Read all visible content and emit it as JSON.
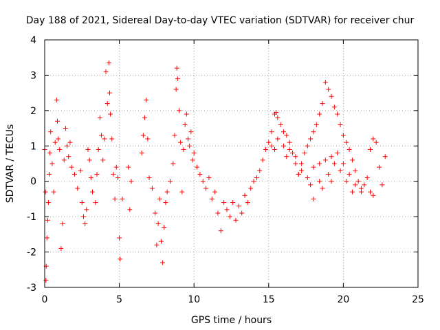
{
  "chart_data": {
    "type": "scatter",
    "title": "Day 188 of 2021, Sidereal Day-to-day VTEC variation (SDTVAR) for receiver chur",
    "xlabel": "GPS time / hours",
    "ylabel": "SDTVAR / TECUs",
    "xlim": [
      0,
      25
    ],
    "ylim": [
      -3,
      4
    ],
    "xticks": [
      0,
      5,
      10,
      15,
      20,
      25
    ],
    "yticks": [
      -3,
      -2,
      -1,
      0,
      1,
      2,
      3,
      4
    ],
    "grid": true,
    "marker": "plus",
    "color": "#ff0000",
    "series": [
      {
        "name": "SDTVAR",
        "points": [
          [
            0.0,
            0.9
          ],
          [
            0.05,
            -0.3
          ],
          [
            0.08,
            -2.8
          ],
          [
            0.1,
            -2.4
          ],
          [
            0.15,
            -1.6
          ],
          [
            0.2,
            -1.1
          ],
          [
            0.25,
            -0.6
          ],
          [
            0.3,
            0.2
          ],
          [
            0.35,
            0.8
          ],
          [
            0.4,
            1.4
          ],
          [
            0.5,
            0.5
          ],
          [
            0.6,
            -0.3
          ],
          [
            0.7,
            1.1
          ],
          [
            0.8,
            2.3
          ],
          [
            0.85,
            1.7
          ],
          [
            0.9,
            1.2
          ],
          [
            1.0,
            0.9
          ],
          [
            1.1,
            -1.9
          ],
          [
            1.2,
            -1.2
          ],
          [
            1.3,
            0.6
          ],
          [
            1.4,
            1.5
          ],
          [
            1.5,
            1.0
          ],
          [
            1.6,
            0.7
          ],
          [
            1.7,
            1.1
          ],
          [
            1.8,
            0.4
          ],
          [
            2.0,
            0.2
          ],
          [
            2.2,
            -0.2
          ],
          [
            2.4,
            0.3
          ],
          [
            2.5,
            -0.6
          ],
          [
            2.6,
            -1.0
          ],
          [
            2.7,
            -1.2
          ],
          [
            2.8,
            -0.8
          ],
          [
            2.9,
            0.9
          ],
          [
            3.0,
            0.6
          ],
          [
            3.1,
            0.1
          ],
          [
            3.2,
            -0.3
          ],
          [
            3.4,
            -0.6
          ],
          [
            3.5,
            0.2
          ],
          [
            3.6,
            0.9
          ],
          [
            3.7,
            1.8
          ],
          [
            3.8,
            1.3
          ],
          [
            3.9,
            0.6
          ],
          [
            4.0,
            1.2
          ],
          [
            4.1,
            3.1
          ],
          [
            4.2,
            2.2
          ],
          [
            4.3,
            3.35
          ],
          [
            4.35,
            2.5
          ],
          [
            4.4,
            1.9
          ],
          [
            4.5,
            1.2
          ],
          [
            4.6,
            0.2
          ],
          [
            4.7,
            -0.5
          ],
          [
            4.8,
            0.4
          ],
          [
            4.9,
            0.1
          ],
          [
            5.0,
            -1.6
          ],
          [
            5.05,
            -2.2
          ],
          [
            5.2,
            -0.5
          ],
          [
            5.6,
            0.4
          ],
          [
            5.7,
            -0.8
          ],
          [
            5.8,
            0.0
          ],
          [
            6.5,
            0.8
          ],
          [
            6.6,
            1.3
          ],
          [
            6.7,
            1.8
          ],
          [
            6.8,
            2.3
          ],
          [
            6.9,
            1.2
          ],
          [
            7.0,
            0.1
          ],
          [
            7.2,
            -0.2
          ],
          [
            7.4,
            -0.9
          ],
          [
            7.5,
            -1.8
          ],
          [
            7.6,
            -1.2
          ],
          [
            7.7,
            -0.5
          ],
          [
            7.8,
            -1.7
          ],
          [
            7.9,
            -2.3
          ],
          [
            8.0,
            -1.3
          ],
          [
            8.1,
            -0.6
          ],
          [
            8.2,
            -0.3
          ],
          [
            8.4,
            0.0
          ],
          [
            8.6,
            0.5
          ],
          [
            8.7,
            1.3
          ],
          [
            8.8,
            2.6
          ],
          [
            8.85,
            3.2
          ],
          [
            8.9,
            2.9
          ],
          [
            9.0,
            2.0
          ],
          [
            9.1,
            1.1
          ],
          [
            9.2,
            -0.3
          ],
          [
            9.3,
            0.9
          ],
          [
            9.4,
            1.6
          ],
          [
            9.5,
            1.9
          ],
          [
            9.6,
            1.2
          ],
          [
            9.7,
            1.0
          ],
          [
            9.8,
            1.4
          ],
          [
            9.9,
            0.6
          ],
          [
            10.0,
            0.8
          ],
          [
            10.2,
            0.4
          ],
          [
            10.4,
            0.2
          ],
          [
            10.6,
            0.0
          ],
          [
            10.8,
            -0.2
          ],
          [
            11.0,
            0.1
          ],
          [
            11.2,
            -0.5
          ],
          [
            11.4,
            -0.3
          ],
          [
            11.6,
            -0.9
          ],
          [
            11.8,
            -1.4
          ],
          [
            12.0,
            -0.6
          ],
          [
            12.2,
            -0.8
          ],
          [
            12.4,
            -1.0
          ],
          [
            12.6,
            -0.6
          ],
          [
            12.8,
            -1.1
          ],
          [
            13.0,
            -0.7
          ],
          [
            13.2,
            -0.9
          ],
          [
            13.4,
            -0.4
          ],
          [
            13.6,
            -0.6
          ],
          [
            13.8,
            -0.2
          ],
          [
            14.0,
            0.0
          ],
          [
            14.2,
            0.1
          ],
          [
            14.4,
            0.3
          ],
          [
            14.6,
            0.6
          ],
          [
            14.8,
            0.9
          ],
          [
            15.0,
            1.1
          ],
          [
            15.2,
            1.4
          ],
          [
            15.4,
            1.9
          ],
          [
            15.5,
            1.95
          ],
          [
            15.6,
            1.8
          ],
          [
            15.8,
            1.6
          ],
          [
            16.0,
            1.4
          ],
          [
            16.2,
            1.3
          ],
          [
            16.4,
            1.1
          ],
          [
            16.6,
            0.8
          ],
          [
            16.8,
            0.5
          ],
          [
            17.0,
            0.2
          ],
          [
            17.2,
            0.5
          ],
          [
            17.4,
            0.8
          ],
          [
            17.6,
            1.0
          ],
          [
            17.8,
            1.2
          ],
          [
            18.0,
            1.4
          ],
          [
            18.2,
            1.6
          ],
          [
            18.4,
            1.9
          ],
          [
            18.6,
            2.2
          ],
          [
            18.8,
            2.8
          ],
          [
            19.0,
            2.6
          ],
          [
            19.2,
            2.4
          ],
          [
            19.4,
            2.1
          ],
          [
            19.6,
            1.9
          ],
          [
            19.8,
            1.6
          ],
          [
            20.0,
            1.3
          ],
          [
            20.2,
            1.1
          ],
          [
            20.4,
            0.9
          ],
          [
            20.6,
            0.6
          ],
          [
            20.8,
            0.3
          ],
          [
            21.0,
            0.0
          ],
          [
            21.2,
            -0.2
          ],
          [
            21.4,
            -0.1
          ],
          [
            21.6,
            0.1
          ],
          [
            21.8,
            0.9
          ],
          [
            22.0,
            1.2
          ],
          [
            22.2,
            1.1
          ],
          [
            22.4,
            0.4
          ],
          [
            22.6,
            -0.1
          ],
          [
            22.8,
            0.7
          ],
          [
            15.2,
            1.0
          ],
          [
            15.6,
            1.2
          ],
          [
            16.0,
            1.0
          ],
          [
            16.4,
            0.9
          ],
          [
            16.8,
            0.7
          ],
          [
            17.2,
            0.3
          ],
          [
            17.6,
            0.1
          ],
          [
            18.0,
            0.4
          ],
          [
            18.4,
            0.5
          ],
          [
            18.8,
            0.6
          ],
          [
            19.2,
            0.7
          ],
          [
            19.6,
            0.8
          ],
          [
            20.0,
            0.5
          ],
          [
            20.4,
            0.2
          ],
          [
            20.8,
            -0.1
          ],
          [
            21.2,
            -0.3
          ],
          [
            15.4,
            0.9
          ],
          [
            16.2,
            0.7
          ],
          [
            17.0,
            0.2
          ],
          [
            17.8,
            -0.1
          ],
          [
            18.4,
            0.0
          ],
          [
            19.0,
            0.2
          ],
          [
            19.4,
            0.5
          ],
          [
            19.8,
            0.3
          ],
          [
            20.2,
            0.0
          ],
          [
            21.8,
            -0.3
          ],
          [
            22.0,
            -0.4
          ],
          [
            18.0,
            -0.5
          ],
          [
            18.6,
            -0.2
          ],
          [
            19.2,
            0.0
          ],
          [
            20.6,
            -0.3
          ]
        ]
      }
    ]
  }
}
